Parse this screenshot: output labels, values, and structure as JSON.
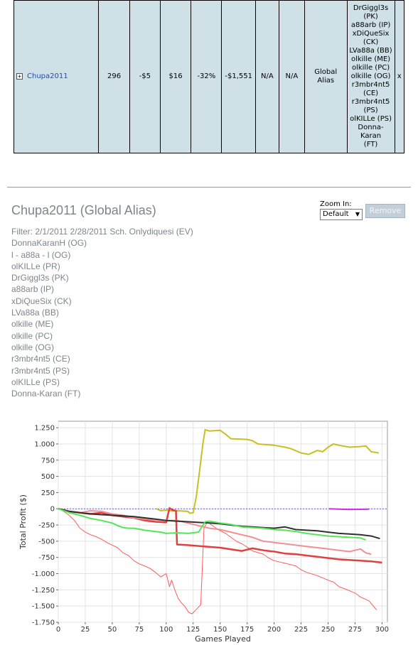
{
  "table": {
    "row": {
      "expand_symbol": "+",
      "name": "Chupa2011",
      "games": "296",
      "col3": "-$5",
      "col4": "$16",
      "col5": "-32%",
      "col6": "-$1,551",
      "col7": "N/A",
      "col8": "N/A",
      "alias_type": "Global Alias",
      "aliases": [
        "DrGiggl3s",
        "(PK)",
        "a88arb (IP)",
        "xDiQueSix",
        "(CK)",
        "LVa88a (BB)",
        "olkille (ME)",
        "olkille (PC)",
        "olkille (OG)",
        "r3mbr4nt5",
        "(CE)",
        "r3mbr4nt5",
        "(PS)",
        "olKILLe (PS)",
        "Donna-Karan",
        "(FT)"
      ],
      "remove_label": "x"
    }
  },
  "section": {
    "title": "Chupa2011 (Global Alias)",
    "filter_lines": [
      "Filter: 2/1/2011 2/28/2011 Sch. Onlydiquesi (EV)",
      "DonnaKaranH (OG)",
      "l - a88a - l (OG)",
      "olKILLe (PR)",
      "DrGiggl3s (PK)",
      "a88arb (IP)",
      "xDiQueSix (CK)",
      "LVa88a (BB)",
      "olkille (ME)",
      "olkille (PC)",
      "olkille (OG)",
      "r3mbr4nt5 (CE)",
      "r3mbr4nt5 (PS)",
      "olKILLe (PS)",
      "Donna-Karan (FT)"
    ]
  },
  "zoom": {
    "label": "Zoom In:",
    "selected": "Default"
  },
  "remove_button": {
    "label": "Remove"
  },
  "icons": {
    "expand": "plus-box-icon",
    "dropdown": "chevron-down-icon"
  },
  "chart_data": {
    "type": "line",
    "title": "",
    "xlabel": "Games Played",
    "ylabel": "Total Profit ($)",
    "xlim": [
      0,
      305
    ],
    "ylim": [
      -1750,
      1350
    ],
    "x_ticks": [
      0,
      25,
      50,
      75,
      100,
      125,
      150,
      175,
      200,
      225,
      250,
      275,
      300
    ],
    "y_ticks": [
      1250,
      1000,
      750,
      500,
      250,
      0,
      -250,
      -500,
      -750,
      -1000,
      -1250,
      -1500,
      -1750
    ],
    "y_tick_labels": [
      "1.250",
      "1.000",
      "750",
      "500",
      "250",
      "0",
      "-250",
      "-500",
      "-750",
      "-1.000",
      "-1.250",
      "-1.500",
      "-1.750"
    ],
    "grid": true,
    "zero_line": true,
    "series": [
      {
        "color": "#c8c020",
        "width": 2,
        "points": [
          [
            91,
            0
          ],
          [
            95,
            -30
          ],
          [
            100,
            -20
          ],
          [
            105,
            -35
          ],
          [
            110,
            -30
          ],
          [
            115,
            -35
          ],
          [
            120,
            -40
          ],
          [
            122,
            -70
          ],
          [
            125,
            -60
          ],
          [
            128,
            200
          ],
          [
            131,
            600
          ],
          [
            134,
            1000
          ],
          [
            136,
            1220
          ],
          [
            140,
            1200
          ],
          [
            150,
            1210
          ],
          [
            155,
            1150
          ],
          [
            160,
            1080
          ],
          [
            175,
            1070
          ],
          [
            180,
            1050
          ],
          [
            185,
            1000
          ],
          [
            200,
            980
          ],
          [
            210,
            950
          ],
          [
            215,
            930
          ],
          [
            225,
            860
          ],
          [
            232,
            840
          ],
          [
            236,
            870
          ],
          [
            240,
            900
          ],
          [
            245,
            880
          ],
          [
            250,
            950
          ],
          [
            255,
            1000
          ],
          [
            260,
            980
          ],
          [
            270,
            950
          ],
          [
            280,
            960
          ],
          [
            285,
            970
          ],
          [
            290,
            880
          ],
          [
            297,
            860
          ]
        ]
      },
      {
        "color": "#ff5a5a",
        "width": 1,
        "points": [
          [
            0,
            0
          ],
          [
            5,
            -40
          ],
          [
            10,
            -100
          ],
          [
            15,
            -180
          ],
          [
            20,
            -300
          ],
          [
            25,
            -360
          ],
          [
            30,
            -400
          ],
          [
            35,
            -430
          ],
          [
            40,
            -470
          ],
          [
            45,
            -520
          ],
          [
            50,
            -560
          ],
          [
            55,
            -600
          ],
          [
            60,
            -680
          ],
          [
            65,
            -720
          ],
          [
            70,
            -800
          ],
          [
            75,
            -850
          ],
          [
            80,
            -880
          ],
          [
            85,
            -920
          ],
          [
            90,
            -980
          ],
          [
            95,
            -1050
          ],
          [
            100,
            -1000
          ],
          [
            103,
            -1200
          ],
          [
            105,
            -1100
          ],
          [
            108,
            -1250
          ],
          [
            111,
            -1380
          ],
          [
            114,
            -1450
          ],
          [
            117,
            -1500
          ],
          [
            121,
            -1600
          ],
          [
            124,
            -1620
          ],
          [
            128,
            -1550
          ],
          [
            132,
            -1480
          ],
          [
            135,
            -300
          ],
          [
            138,
            -200
          ],
          [
            143,
            -260
          ],
          [
            148,
            -320
          ],
          [
            155,
            -380
          ],
          [
            160,
            -440
          ],
          [
            165,
            -500
          ],
          [
            170,
            -540
          ],
          [
            175,
            -590
          ],
          [
            180,
            -650
          ],
          [
            190,
            -700
          ],
          [
            195,
            -760
          ],
          [
            200,
            -800
          ],
          [
            210,
            -840
          ],
          [
            220,
            -880
          ],
          [
            225,
            -940
          ],
          [
            230,
            -980
          ],
          [
            240,
            -1030
          ],
          [
            250,
            -1100
          ],
          [
            255,
            -1130
          ],
          [
            260,
            -1200
          ],
          [
            268,
            -1250
          ],
          [
            275,
            -1300
          ],
          [
            280,
            -1360
          ],
          [
            288,
            -1420
          ],
          [
            295,
            -1560
          ]
        ]
      },
      {
        "color": "#e04040",
        "width": 2.5,
        "points": [
          [
            0,
            0
          ],
          [
            10,
            -40
          ],
          [
            20,
            -60
          ],
          [
            30,
            -80
          ],
          [
            40,
            -60
          ],
          [
            50,
            -100
          ],
          [
            60,
            -120
          ],
          [
            70,
            -140
          ],
          [
            80,
            -180
          ],
          [
            90,
            -200
          ],
          [
            100,
            -210
          ],
          [
            103,
            10
          ],
          [
            106,
            -20
          ],
          [
            109,
            -30
          ],
          [
            110,
            -550
          ],
          [
            120,
            -560
          ],
          [
            135,
            -580
          ],
          [
            150,
            -600
          ],
          [
            170,
            -650
          ],
          [
            180,
            -610
          ],
          [
            190,
            -640
          ],
          [
            200,
            -660
          ],
          [
            210,
            -690
          ],
          [
            220,
            -700
          ],
          [
            230,
            -720
          ],
          [
            240,
            -740
          ],
          [
            250,
            -760
          ],
          [
            260,
            -780
          ],
          [
            270,
            -790
          ],
          [
            280,
            -800
          ],
          [
            290,
            -810
          ],
          [
            300,
            -830
          ]
        ]
      },
      {
        "color": "#f09090",
        "width": 2,
        "points": [
          [
            0,
            0
          ],
          [
            10,
            -50
          ],
          [
            20,
            -60
          ],
          [
            30,
            -30
          ],
          [
            40,
            -40
          ],
          [
            50,
            -80
          ],
          [
            60,
            -100
          ],
          [
            70,
            -140
          ],
          [
            80,
            -160
          ],
          [
            90,
            -170
          ],
          [
            100,
            -180
          ],
          [
            110,
            -180
          ],
          [
            120,
            -220
          ],
          [
            130,
            -260
          ],
          [
            140,
            -300
          ],
          [
            150,
            -320
          ],
          [
            160,
            -360
          ],
          [
            170,
            -400
          ],
          [
            180,
            -440
          ],
          [
            190,
            -500
          ],
          [
            200,
            -520
          ],
          [
            210,
            -540
          ],
          [
            220,
            -560
          ],
          [
            230,
            -580
          ],
          [
            240,
            -600
          ],
          [
            250,
            -620
          ],
          [
            260,
            -640
          ],
          [
            270,
            -660
          ],
          [
            280,
            -620
          ],
          [
            285,
            -680
          ],
          [
            290,
            -700
          ]
        ]
      },
      {
        "color": "#303030",
        "width": 2,
        "points": [
          [
            0,
            0
          ],
          [
            10,
            -40
          ],
          [
            20,
            -60
          ],
          [
            30,
            -80
          ],
          [
            40,
            -90
          ],
          [
            50,
            -100
          ],
          [
            60,
            -110
          ],
          [
            70,
            -120
          ],
          [
            80,
            -140
          ],
          [
            90,
            -160
          ],
          [
            100,
            -180
          ],
          [
            110,
            -190
          ],
          [
            120,
            -200
          ],
          [
            130,
            -210
          ],
          [
            140,
            -220
          ],
          [
            150,
            -230
          ],
          [
            160,
            -250
          ],
          [
            170,
            -270
          ],
          [
            180,
            -280
          ],
          [
            190,
            -290
          ],
          [
            200,
            -300
          ],
          [
            210,
            -280
          ],
          [
            220,
            -320
          ],
          [
            230,
            -330
          ],
          [
            240,
            -340
          ],
          [
            250,
            -360
          ],
          [
            260,
            -380
          ],
          [
            270,
            -390
          ],
          [
            280,
            -400
          ],
          [
            290,
            -420
          ],
          [
            298,
            -460
          ]
        ]
      },
      {
        "color": "#55e655",
        "width": 2,
        "points": [
          [
            0,
            0
          ],
          [
            10,
            -60
          ],
          [
            20,
            -100
          ],
          [
            30,
            -150
          ],
          [
            40,
            -180
          ],
          [
            50,
            -220
          ],
          [
            55,
            -260
          ],
          [
            60,
            -290
          ],
          [
            65,
            -300
          ],
          [
            70,
            -300
          ],
          [
            80,
            -330
          ],
          [
            90,
            -350
          ],
          [
            95,
            -360
          ],
          [
            100,
            -380
          ],
          [
            110,
            -370
          ],
          [
            120,
            -380
          ],
          [
            130,
            -360
          ],
          [
            136,
            -200
          ],
          [
            140,
            -190
          ],
          [
            150,
            -220
          ],
          [
            160,
            -240
          ],
          [
            170,
            -280
          ],
          [
            180,
            -290
          ],
          [
            190,
            -300
          ],
          [
            200,
            -320
          ],
          [
            210,
            -330
          ],
          [
            220,
            -350
          ],
          [
            230,
            -380
          ],
          [
            240,
            -400
          ],
          [
            250,
            -420
          ],
          [
            260,
            -430
          ],
          [
            270,
            -440
          ],
          [
            280,
            -450
          ],
          [
            285,
            -480
          ]
        ]
      },
      {
        "color": "#d030e0",
        "width": 2,
        "points": [
          [
            251,
            0
          ],
          [
            260,
            -5
          ],
          [
            270,
            -10
          ],
          [
            280,
            -8
          ],
          [
            288,
            -5
          ]
        ]
      }
    ]
  }
}
